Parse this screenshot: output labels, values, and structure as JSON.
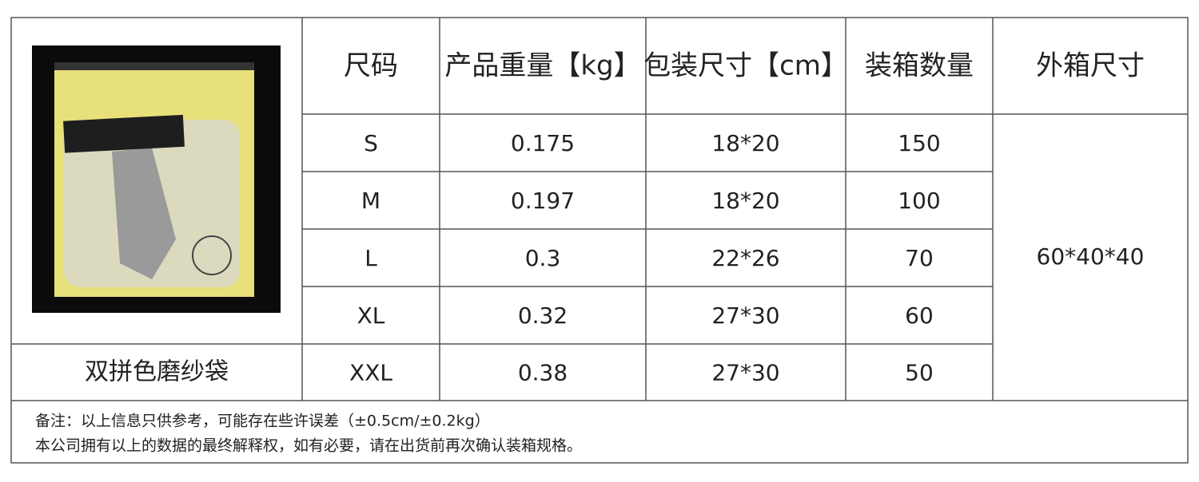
{
  "table": {
    "header": [
      "尺码",
      "产品重量【kg】",
      "包装尺寸【cm】",
      "装箱数量",
      "外箱尺寸"
    ],
    "rows": [
      [
        "S",
        "0.175",
        "18*20",
        "150"
      ],
      [
        "M",
        "0.197",
        "18*20",
        "100"
      ],
      [
        "L",
        "0.3",
        "22*26",
        "70"
      ],
      [
        "XL",
        "0.32",
        "27*30",
        "60"
      ],
      [
        "XXL",
        "0.38",
        "27*30",
        "50"
      ]
    ],
    "outer_box": "60*40*40",
    "product_label": "双拼色磨纱袋"
  },
  "notes": [
    "备注：以上信息只供参考，可能存在些许误差（±0.5cm/±0.2kg）",
    "本公司拥有以上的数据的最终解释权，如有必要，请在出货前再次确认装箱规格。"
  ]
}
